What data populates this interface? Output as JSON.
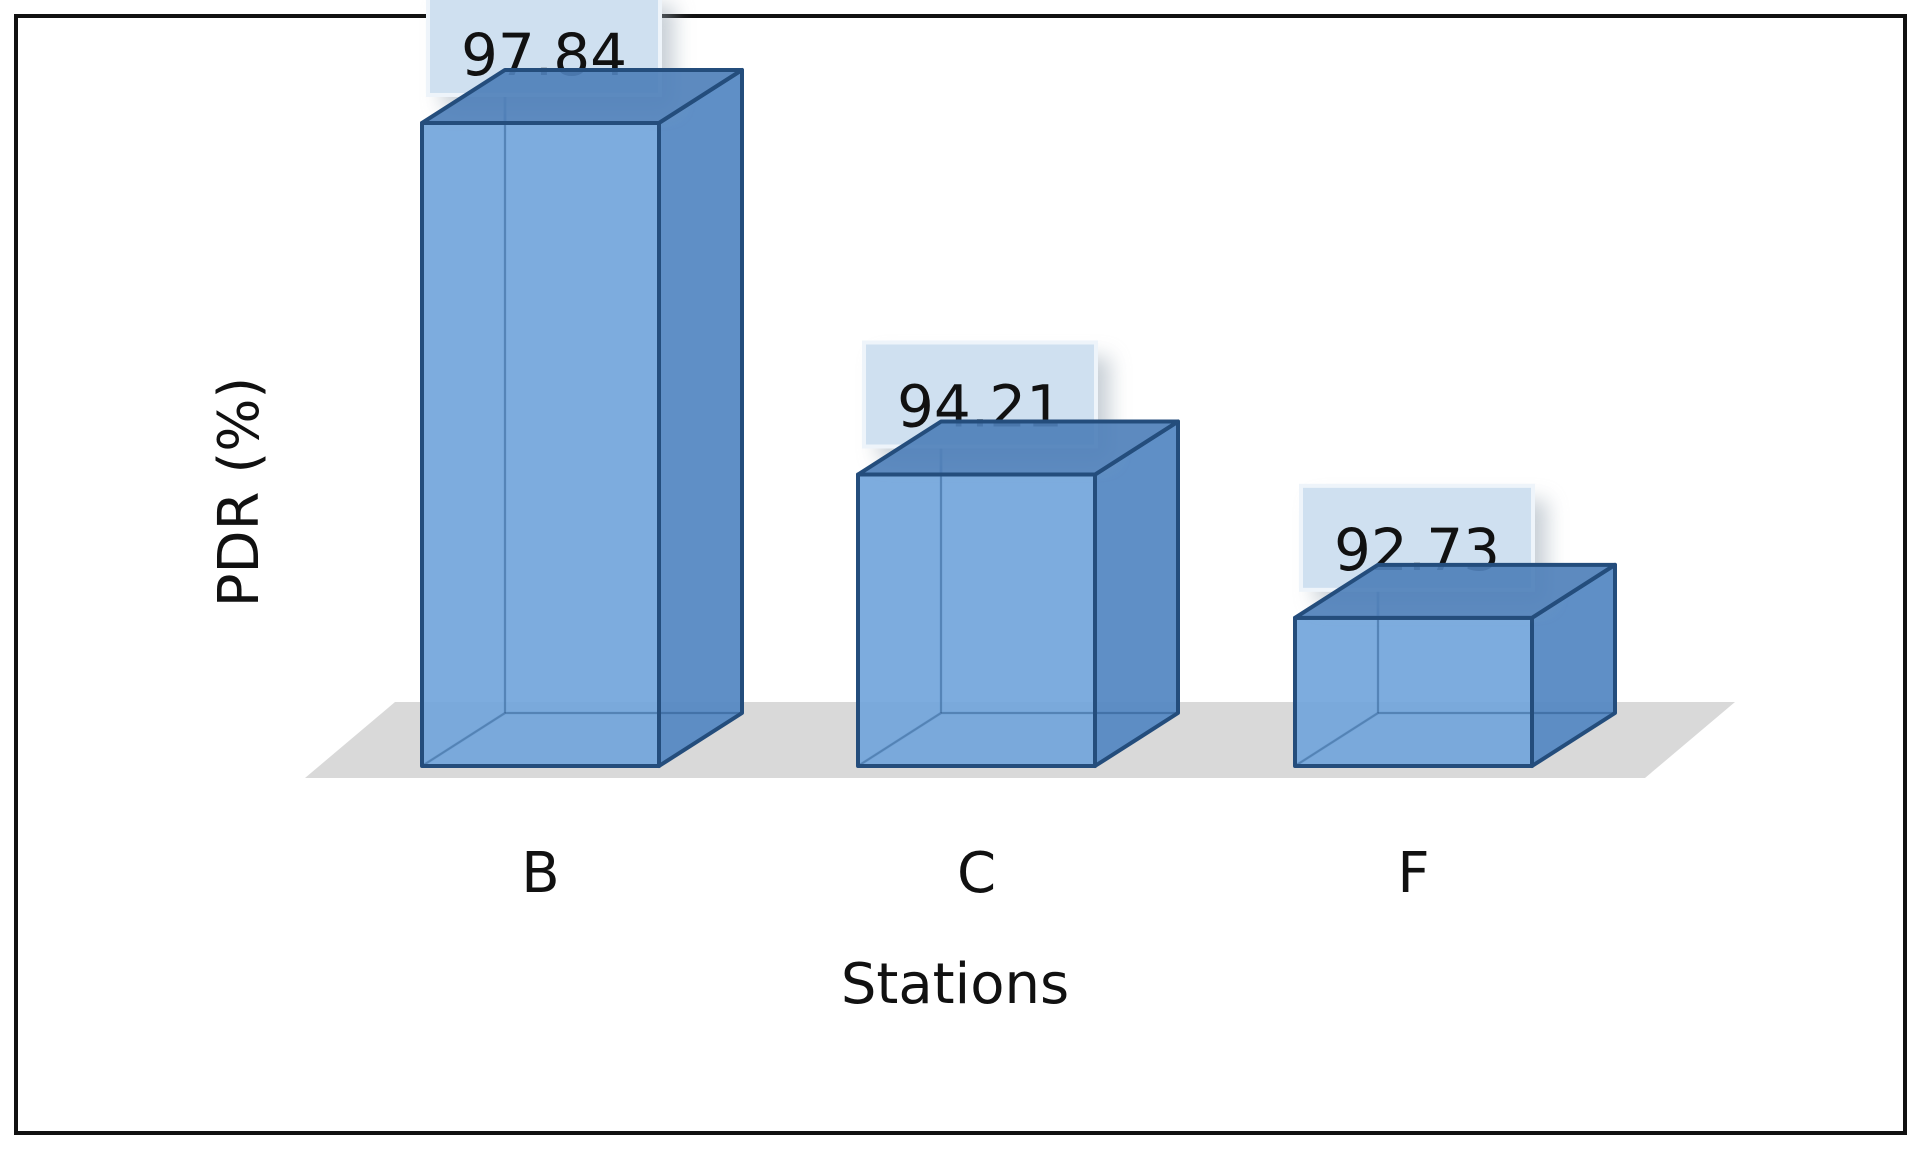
{
  "chart_data": {
    "type": "bar",
    "categories": [
      "B",
      "C",
      "F"
    ],
    "values": [
      97.84,
      94.21,
      92.73
    ],
    "data_labels": [
      "97.84",
      "94.21",
      "92.73"
    ],
    "title": "",
    "xlabel": "Stations",
    "ylabel": "PDR (%)",
    "ylim": [
      91.2,
      98.8
    ],
    "grid": false,
    "legend": "none",
    "style": "3d-column"
  },
  "colors": {
    "bar_front": "#6fa3da",
    "bar_side": "#5386c2",
    "bar_top": "#4f80ba",
    "bar_edge": "#244d7c",
    "floor": "#d9d9d9",
    "label_box": "#cfe0f0"
  }
}
